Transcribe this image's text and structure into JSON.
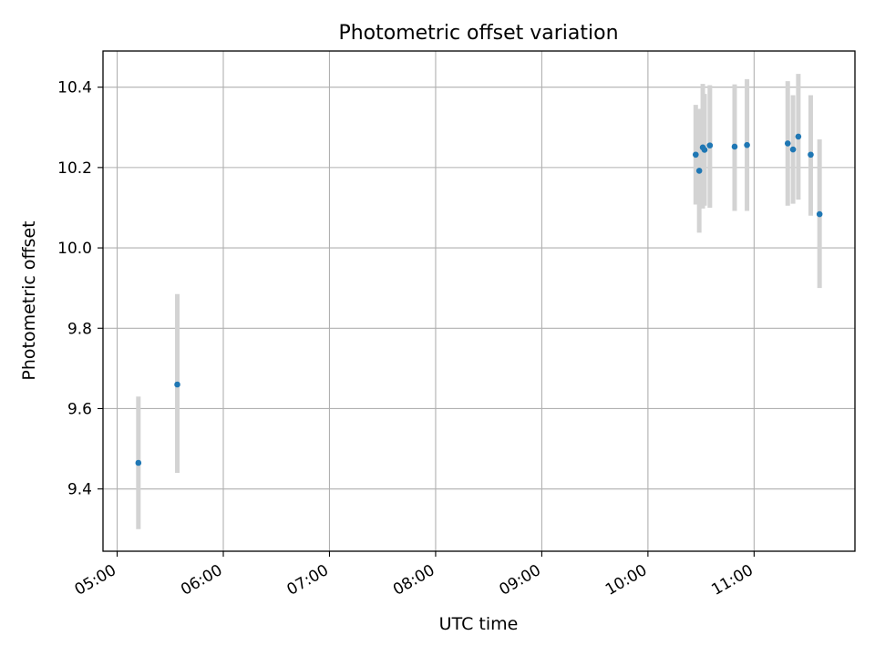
{
  "chart_data": {
    "type": "scatter",
    "title": "Photometric offset variation",
    "xlabel": "UTC time",
    "ylabel": "Photometric offset",
    "grid": true,
    "xlim": [
      "04:52",
      "11:57"
    ],
    "ylim": [
      9.245,
      10.49
    ],
    "x_ticks": [
      "05:00",
      "06:00",
      "07:00",
      "08:00",
      "09:00",
      "10:00",
      "11:00"
    ],
    "y_ticks": [
      "9.4",
      "9.6",
      "9.8",
      "10.0",
      "10.2",
      "10.4"
    ],
    "colors": {
      "point": "#1f77b4",
      "errorbar": "#d3d3d3",
      "grid": "#b0b0b0"
    },
    "points": [
      {
        "x": "05:12",
        "y": 9.465,
        "yerr_low": 9.3,
        "yerr_high": 9.63
      },
      {
        "x": "05:34",
        "y": 9.66,
        "yerr_low": 9.44,
        "yerr_high": 9.885
      },
      {
        "x": "10:27",
        "y": 10.232,
        "yerr_low": 10.108,
        "yerr_high": 10.356
      },
      {
        "x": "10:29",
        "y": 10.192,
        "yerr_low": 10.038,
        "yerr_high": 10.346
      },
      {
        "x": "10:31",
        "y": 10.25,
        "yerr_low": 10.098,
        "yerr_high": 10.408
      },
      {
        "x": "10:32",
        "y": 10.244,
        "yerr_low": 10.105,
        "yerr_high": 10.383
      },
      {
        "x": "10:35",
        "y": 10.255,
        "yerr_low": 10.1,
        "yerr_high": 10.405
      },
      {
        "x": "10:49",
        "y": 10.252,
        "yerr_low": 10.092,
        "yerr_high": 10.407
      },
      {
        "x": "10:56",
        "y": 10.256,
        "yerr_low": 10.092,
        "yerr_high": 10.42
      },
      {
        "x": "11:19",
        "y": 10.26,
        "yerr_low": 10.105,
        "yerr_high": 10.415
      },
      {
        "x": "11:22",
        "y": 10.245,
        "yerr_low": 10.11,
        "yerr_high": 10.38
      },
      {
        "x": "11:25",
        "y": 10.277,
        "yerr_low": 10.12,
        "yerr_high": 10.433
      },
      {
        "x": "11:32",
        "y": 10.232,
        "yerr_low": 10.08,
        "yerr_high": 10.38
      },
      {
        "x": "11:37",
        "y": 10.084,
        "yerr_low": 9.9,
        "yerr_high": 10.27
      }
    ]
  }
}
